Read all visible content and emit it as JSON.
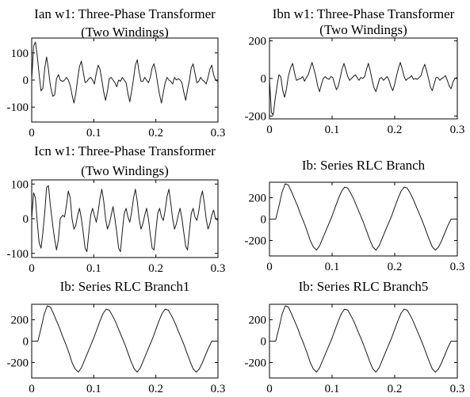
{
  "chart_data": [
    {
      "type": "line",
      "title": [
        "Ian w1: Three-Phase Transformer",
        "(Two Windings)"
      ],
      "x_ticks": [
        0,
        0.1,
        0.2,
        0.3
      ],
      "y_ticks": [
        100,
        0,
        -100
      ],
      "xlim": [
        0,
        0.3
      ],
      "ylim": [
        -155,
        155
      ],
      "series": [
        {
          "x": [
            0,
            0.003,
            0.006,
            0.009,
            0.012,
            0.015,
            0.018,
            0.021,
            0.024,
            0.027,
            0.03,
            0.034,
            0.037,
            0.04,
            0.043,
            0.046,
            0.05,
            0.053,
            0.056,
            0.059,
            0.062,
            0.065,
            0.068,
            0.071,
            0.074,
            0.077,
            0.08,
            0.083,
            0.086,
            0.089,
            0.092,
            0.095,
            0.098,
            0.101,
            0.104,
            0.107,
            0.11,
            0.113,
            0.116,
            0.119,
            0.122,
            0.125,
            0.128,
            0.131,
            0.134,
            0.137,
            0.14,
            0.143,
            0.146,
            0.149,
            0.152,
            0.155,
            0.158,
            0.161,
            0.164,
            0.167,
            0.17,
            0.173,
            0.176,
            0.179,
            0.182,
            0.185,
            0.188,
            0.191,
            0.194,
            0.197,
            0.2,
            0.203,
            0.206,
            0.209,
            0.212,
            0.215,
            0.218,
            0.221,
            0.224,
            0.227,
            0.23,
            0.233,
            0.236,
            0.239,
            0.242,
            0.245,
            0.248,
            0.251,
            0.254,
            0.257,
            0.26,
            0.263,
            0.266,
            0.269,
            0.272,
            0.275,
            0.278,
            0.281,
            0.284,
            0.287,
            0.29,
            0.293,
            0.296,
            0.3
          ],
          "y": [
            0,
            125,
            140,
            90,
            20,
            -40,
            -30,
            45,
            85,
            40,
            -20,
            -60,
            -55,
            5,
            20,
            0,
            -5,
            0,
            10,
            0,
            -20,
            -55,
            -85,
            -50,
            5,
            50,
            70,
            30,
            -10,
            -5,
            5,
            10,
            0,
            -15,
            25,
            55,
            40,
            0,
            -45,
            -75,
            -40,
            5,
            10,
            0,
            -10,
            -25,
            0,
            -5,
            10,
            0,
            -10,
            -50,
            -80,
            -40,
            5,
            55,
            75,
            30,
            -5,
            -5,
            10,
            0,
            -10,
            10,
            45,
            60,
            30,
            -15,
            -55,
            -85,
            -45,
            -10,
            10,
            0,
            -5,
            -15,
            10,
            0,
            5,
            0,
            -10,
            -45,
            -75,
            -35,
            0,
            45,
            60,
            25,
            -10,
            -5,
            10,
            0,
            -5,
            -15,
            10,
            40,
            55,
            20,
            0,
            -5
          ]
        }
      ]
    },
    {
      "type": "line",
      "title": [
        "Ibn w1: Three-Phase Transformer",
        "(Two Windings)"
      ],
      "x_ticks": [
        0,
        0.1,
        0.2,
        0.3
      ],
      "y_ticks": [
        200,
        0,
        -200
      ],
      "xlim": [
        0,
        0.3
      ],
      "ylim": [
        -215,
        215
      ],
      "series": [
        {
          "x": [
            0,
            0.003,
            0.006,
            0.009,
            0.012,
            0.015,
            0.018,
            0.021,
            0.024,
            0.027,
            0.03,
            0.034,
            0.037,
            0.04,
            0.043,
            0.046,
            0.05,
            0.053,
            0.056,
            0.059,
            0.062,
            0.065,
            0.068,
            0.071,
            0.074,
            0.077,
            0.08,
            0.083,
            0.086,
            0.089,
            0.092,
            0.095,
            0.098,
            0.101,
            0.104,
            0.107,
            0.11,
            0.113,
            0.116,
            0.119,
            0.122,
            0.125,
            0.128,
            0.131,
            0.134,
            0.137,
            0.14,
            0.143,
            0.146,
            0.149,
            0.152,
            0.155,
            0.158,
            0.161,
            0.164,
            0.167,
            0.17,
            0.173,
            0.176,
            0.179,
            0.182,
            0.185,
            0.188,
            0.191,
            0.194,
            0.197,
            0.2,
            0.203,
            0.206,
            0.209,
            0.212,
            0.215,
            0.218,
            0.221,
            0.224,
            0.227,
            0.23,
            0.233,
            0.236,
            0.239,
            0.242,
            0.245,
            0.248,
            0.251,
            0.254,
            0.257,
            0.26,
            0.263,
            0.266,
            0.269,
            0.272,
            0.275,
            0.278,
            0.281,
            0.284,
            0.287,
            0.29,
            0.293,
            0.296,
            0.3
          ],
          "y": [
            0,
            -180,
            -195,
            -110,
            -40,
            20,
            10,
            -60,
            -100,
            -60,
            10,
            60,
            80,
            30,
            -10,
            -5,
            0,
            10,
            -15,
            5,
            20,
            55,
            85,
            50,
            10,
            -40,
            -70,
            -30,
            0,
            10,
            0,
            -5,
            10,
            5,
            -30,
            -60,
            -40,
            5,
            50,
            80,
            45,
            10,
            -10,
            0,
            10,
            20,
            5,
            -10,
            5,
            0,
            10,
            50,
            80,
            40,
            -10,
            -50,
            -70,
            -35,
            0,
            5,
            -10,
            0,
            10,
            -10,
            -45,
            -65,
            -30,
            15,
            55,
            85,
            50,
            10,
            -10,
            0,
            5,
            15,
            -5,
            0,
            -5,
            5,
            15,
            50,
            75,
            40,
            0,
            -45,
            -65,
            -30,
            5,
            5,
            -10,
            0,
            5,
            15,
            -10,
            -40,
            -55,
            -20,
            0,
            5
          ]
        }
      ]
    },
    {
      "type": "line",
      "title": [
        "Icn w1: Three-Phase Transformer",
        "(Two Windings)"
      ],
      "x_ticks": [
        0,
        0.1,
        0.2,
        0.3
      ],
      "y_ticks": [
        100,
        0,
        -100
      ],
      "xlim": [
        0,
        0.3
      ],
      "ylim": [
        -112,
        112
      ],
      "series": [
        {
          "x": [
            0,
            0.003,
            0.006,
            0.009,
            0.012,
            0.015,
            0.018,
            0.021,
            0.024,
            0.027,
            0.03,
            0.034,
            0.037,
            0.04,
            0.043,
            0.046,
            0.05,
            0.053,
            0.056,
            0.059,
            0.062,
            0.065,
            0.068,
            0.071,
            0.074,
            0.077,
            0.08,
            0.083,
            0.086,
            0.089,
            0.092,
            0.095,
            0.098,
            0.101,
            0.104,
            0.107,
            0.11,
            0.113,
            0.116,
            0.119,
            0.122,
            0.125,
            0.128,
            0.131,
            0.134,
            0.137,
            0.14,
            0.143,
            0.146,
            0.149,
            0.152,
            0.155,
            0.158,
            0.161,
            0.164,
            0.167,
            0.17,
            0.173,
            0.176,
            0.179,
            0.182,
            0.185,
            0.188,
            0.191,
            0.194,
            0.197,
            0.2,
            0.203,
            0.206,
            0.209,
            0.212,
            0.215,
            0.218,
            0.221,
            0.224,
            0.227,
            0.23,
            0.233,
            0.236,
            0.239,
            0.242,
            0.245,
            0.248,
            0.251,
            0.254,
            0.257,
            0.26,
            0.263,
            0.266,
            0.269,
            0.272,
            0.275,
            0.278,
            0.281,
            0.284,
            0.287,
            0.29,
            0.293,
            0.296,
            0.3
          ],
          "y": [
            0,
            75,
            60,
            -10,
            -70,
            -85,
            -40,
            20,
            90,
            95,
            40,
            -20,
            -60,
            -90,
            -60,
            0,
            10,
            5,
            40,
            80,
            60,
            0,
            -30,
            -20,
            10,
            30,
            0,
            -40,
            -85,
            -95,
            -40,
            10,
            30,
            10,
            -10,
            20,
            60,
            85,
            50,
            0,
            -30,
            -15,
            10,
            35,
            0,
            -40,
            -85,
            -95,
            -35,
            15,
            30,
            5,
            -10,
            20,
            60,
            85,
            50,
            0,
            -30,
            -15,
            10,
            30,
            0,
            -45,
            -85,
            -90,
            -35,
            15,
            30,
            5,
            -5,
            25,
            65,
            85,
            45,
            0,
            -30,
            -15,
            10,
            30,
            0,
            -40,
            -80,
            -90,
            -35,
            15,
            30,
            5,
            -5,
            20,
            60,
            80,
            45,
            0,
            -30,
            -15,
            10,
            25,
            0,
            -5
          ]
        }
      ]
    },
    {
      "type": "line",
      "title": [
        "Ib: Series RLC Branch"
      ],
      "x_ticks": [
        0,
        0.1,
        0.2,
        0.3
      ],
      "y_ticks": [
        200,
        0,
        -200
      ],
      "xlim": [
        0,
        0.3
      ],
      "ylim": [
        -345,
        345
      ],
      "series": [
        {
          "x": [
            0,
            0.01,
            0.015,
            0.02,
            0.025,
            0.03,
            0.035,
            0.04,
            0.045,
            0.05,
            0.055,
            0.06,
            0.065,
            0.07,
            0.075,
            0.08,
            0.085,
            0.09,
            0.095,
            0.1,
            0.105,
            0.11,
            0.115,
            0.12,
            0.125,
            0.13,
            0.135,
            0.14,
            0.145,
            0.15,
            0.155,
            0.16,
            0.165,
            0.17,
            0.175,
            0.18,
            0.185,
            0.19,
            0.195,
            0.2,
            0.205,
            0.21,
            0.215,
            0.22,
            0.225,
            0.23,
            0.235,
            0.24,
            0.245,
            0.25,
            0.255,
            0.26,
            0.265,
            0.27,
            0.275,
            0.28,
            0.285,
            0.29,
            0.295,
            0.3
          ],
          "y": [
            0,
            0,
            120,
            250,
            330,
            320,
            260,
            190,
            120,
            40,
            -30,
            -110,
            -200,
            -260,
            -290,
            -250,
            -180,
            -110,
            -40,
            30,
            110,
            190,
            260,
            300,
            290,
            240,
            180,
            110,
            40,
            -30,
            -110,
            -190,
            -260,
            -290,
            -250,
            -180,
            -110,
            -40,
            30,
            110,
            190,
            260,
            300,
            290,
            240,
            180,
            110,
            40,
            -30,
            -110,
            -190,
            -260,
            -290,
            -260,
            -200,
            -130,
            -60,
            0,
            0,
            0
          ]
        }
      ]
    },
    {
      "type": "line",
      "title": [
        "Ib: Series RLC Branch1"
      ],
      "x_ticks": [
        0,
        0.1,
        0.2,
        0.3
      ],
      "y_ticks": [
        200,
        0,
        -200
      ],
      "xlim": [
        0,
        0.3
      ],
      "ylim": [
        -345,
        345
      ],
      "series": [
        {
          "x": [
            0,
            0.01,
            0.015,
            0.02,
            0.025,
            0.03,
            0.035,
            0.04,
            0.045,
            0.05,
            0.055,
            0.06,
            0.065,
            0.07,
            0.075,
            0.08,
            0.085,
            0.09,
            0.095,
            0.1,
            0.105,
            0.11,
            0.115,
            0.12,
            0.125,
            0.13,
            0.135,
            0.14,
            0.145,
            0.15,
            0.155,
            0.16,
            0.165,
            0.17,
            0.175,
            0.18,
            0.185,
            0.19,
            0.195,
            0.2,
            0.205,
            0.21,
            0.215,
            0.22,
            0.225,
            0.23,
            0.235,
            0.24,
            0.245,
            0.25,
            0.255,
            0.26,
            0.265,
            0.27,
            0.275,
            0.28,
            0.285,
            0.29,
            0.295,
            0.3
          ],
          "y": [
            0,
            0,
            120,
            250,
            330,
            320,
            260,
            190,
            120,
            40,
            -30,
            -110,
            -200,
            -260,
            -290,
            -250,
            -180,
            -110,
            -40,
            30,
            110,
            190,
            260,
            300,
            290,
            240,
            180,
            110,
            40,
            -30,
            -110,
            -190,
            -260,
            -290,
            -250,
            -180,
            -110,
            -40,
            30,
            110,
            190,
            260,
            300,
            290,
            240,
            180,
            110,
            40,
            -30,
            -110,
            -190,
            -260,
            -290,
            -260,
            -200,
            -130,
            -60,
            0,
            0,
            0
          ]
        }
      ]
    },
    {
      "type": "line",
      "title": [
        "Ib: Series RLC Branch5"
      ],
      "x_ticks": [
        0,
        0.1,
        0.2,
        0.3
      ],
      "y_ticks": [
        200,
        0,
        -200
      ],
      "xlim": [
        0,
        0.3
      ],
      "ylim": [
        -345,
        345
      ],
      "series": [
        {
          "x": [
            0,
            0.01,
            0.015,
            0.02,
            0.025,
            0.03,
            0.035,
            0.04,
            0.045,
            0.05,
            0.055,
            0.06,
            0.065,
            0.07,
            0.075,
            0.08,
            0.085,
            0.09,
            0.095,
            0.1,
            0.105,
            0.11,
            0.115,
            0.12,
            0.125,
            0.13,
            0.135,
            0.14,
            0.145,
            0.15,
            0.155,
            0.16,
            0.165,
            0.17,
            0.175,
            0.18,
            0.185,
            0.19,
            0.195,
            0.2,
            0.205,
            0.21,
            0.215,
            0.22,
            0.225,
            0.23,
            0.235,
            0.24,
            0.245,
            0.25,
            0.255,
            0.26,
            0.265,
            0.27,
            0.275,
            0.28,
            0.285,
            0.29,
            0.295,
            0.3
          ],
          "y": [
            0,
            0,
            120,
            250,
            330,
            320,
            260,
            190,
            120,
            40,
            -30,
            -110,
            -200,
            -260,
            -290,
            -250,
            -180,
            -110,
            -40,
            30,
            110,
            190,
            260,
            300,
            290,
            240,
            180,
            110,
            40,
            -30,
            -110,
            -190,
            -260,
            -290,
            -250,
            -180,
            -110,
            -40,
            30,
            110,
            190,
            260,
            300,
            290,
            240,
            180,
            110,
            40,
            -30,
            -110,
            -190,
            -260,
            -290,
            -260,
            -200,
            -130,
            -60,
            0,
            0,
            0
          ]
        }
      ]
    }
  ]
}
